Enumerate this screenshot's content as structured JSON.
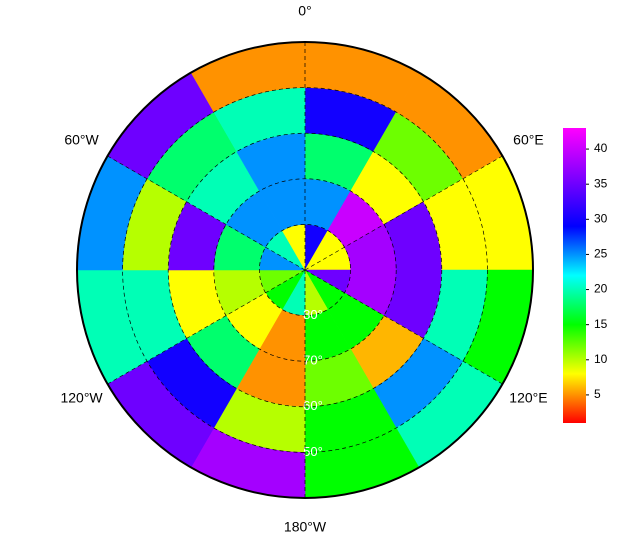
{
  "chart_data": {
    "type": "polar-heatmap",
    "lat_bins": [
      90,
      80,
      70,
      60,
      50,
      40
    ],
    "lon_bins": [
      0,
      30,
      60,
      90,
      120,
      150,
      180,
      210,
      240,
      270,
      300,
      330,
      360
    ],
    "values": [
      [
        30,
        8,
        8,
        35,
        15,
        10,
        20,
        15,
        12,
        25,
        20,
        8
      ],
      [
        25,
        40,
        38,
        38,
        15,
        15,
        5,
        8,
        10,
        18,
        25,
        25
      ],
      [
        18,
        8,
        35,
        35,
        6,
        12,
        5,
        18,
        8,
        35,
        20,
        25
      ],
      [
        30,
        12,
        8,
        20,
        25,
        15,
        10,
        30,
        20,
        10,
        18,
        20
      ],
      [
        5,
        5,
        8,
        15,
        20,
        15,
        38,
        35,
        20,
        25,
        35,
        5
      ]
    ],
    "rlim": [
      90,
      40
    ],
    "lat_ticks": [
      {
        "value": 80,
        "label": "80°"
      },
      {
        "value": 70,
        "label": "70°"
      },
      {
        "value": 60,
        "label": "60°"
      },
      {
        "value": 50,
        "label": "50°"
      }
    ],
    "lon_ticks": [
      {
        "value": 0,
        "label": "0°"
      },
      {
        "value": 60,
        "label": "60°E"
      },
      {
        "value": 120,
        "label": "120°E"
      },
      {
        "value": 180,
        "label": "180°W"
      },
      {
        "value": 240,
        "label": "120°W"
      },
      {
        "value": 300,
        "label": "60°W"
      }
    ],
    "colormap": [
      "#ff0000",
      "#ffff00",
      "#00ff00",
      "#00ffff",
      "#0000ff",
      "#8000ff",
      "#ff00ff"
    ],
    "clim": [
      1,
      43
    ],
    "cticks": [
      5,
      10,
      15,
      20,
      25,
      30,
      35,
      40
    ]
  }
}
